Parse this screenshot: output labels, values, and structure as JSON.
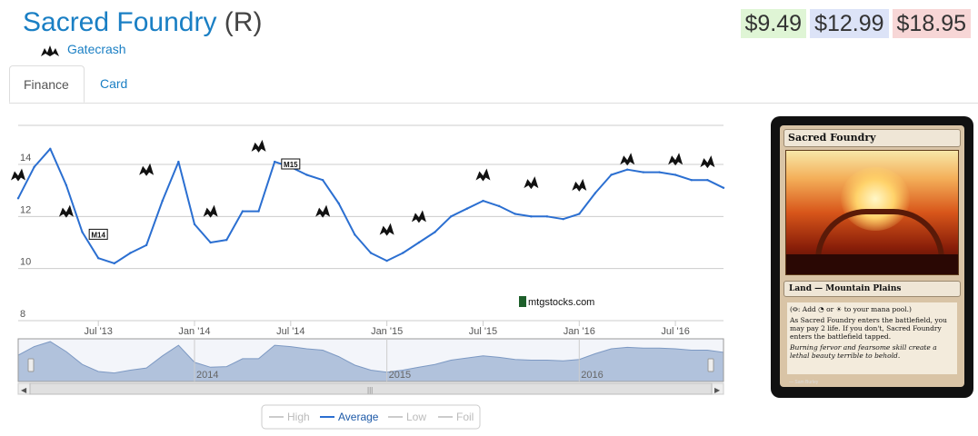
{
  "header": {
    "card_name": "Sacred Foundry",
    "rarity": "(R)",
    "set_name": "Gatecrash",
    "set_icon": "gatecrash-set-icon"
  },
  "prices": [
    {
      "value": "$9.49",
      "bg": "#dff5d5"
    },
    {
      "value": "$12.99",
      "bg": "#dce3f7"
    },
    {
      "value": "$18.95",
      "bg": "#f7d6d6"
    }
  ],
  "tabs": [
    {
      "label": "Finance",
      "active": true
    },
    {
      "label": "Card",
      "active": false
    }
  ],
  "chart_data": {
    "type": "line",
    "series": [
      {
        "name": "Average",
        "color": "#2b6fd1",
        "x": [
          "2013-02",
          "2013-03",
          "2013-04",
          "2013-05",
          "2013-06",
          "2013-07",
          "2013-08",
          "2013-09",
          "2013-10",
          "2013-11",
          "2013-12",
          "2014-01",
          "2014-02",
          "2014-03",
          "2014-04",
          "2014-05",
          "2014-06",
          "2014-07",
          "2014-08",
          "2014-09",
          "2014-10",
          "2014-11",
          "2014-12",
          "2015-01",
          "2015-02",
          "2015-03",
          "2015-04",
          "2015-05",
          "2015-06",
          "2015-07",
          "2015-08",
          "2015-09",
          "2015-10",
          "2015-11",
          "2015-12",
          "2016-01",
          "2016-02",
          "2016-03",
          "2016-04",
          "2016-05",
          "2016-06",
          "2016-07",
          "2016-08",
          "2016-09",
          "2016-10"
        ],
        "y": [
          12.7,
          13.9,
          14.6,
          13.2,
          11.4,
          10.4,
          10.2,
          10.6,
          10.9,
          12.6,
          14.1,
          11.7,
          11.0,
          11.1,
          12.2,
          12.2,
          14.1,
          13.9,
          13.6,
          13.4,
          12.5,
          11.3,
          10.6,
          10.3,
          10.6,
          11.0,
          11.4,
          12.0,
          12.3,
          12.6,
          12.4,
          12.1,
          12.0,
          12.0,
          11.9,
          12.1,
          12.9,
          13.6,
          13.8,
          13.7,
          13.7,
          13.6,
          13.4,
          13.4,
          13.1
        ]
      }
    ],
    "ylim": [
      8,
      15.5
    ],
    "yticks": [
      "8",
      "10",
      "12",
      "14"
    ],
    "xticks": [
      "Jul '13",
      "Jan '14",
      "Jul '14",
      "Jan '15",
      "Jul '15",
      "Jan '16",
      "Jul '16"
    ],
    "navigator_labels": [
      "2014",
      "2015",
      "2016"
    ],
    "watermark": "mtgstocks.com",
    "legend": [
      "High",
      "Average",
      "Low",
      "Foil"
    ],
    "legend_active": "Average",
    "set_markers": [
      {
        "icon": "gatecrash-set-icon",
        "x": "2013-02",
        "y": 13.6
      },
      {
        "icon": "dragons-maze-set-icon",
        "x": "2013-05",
        "y": 12.2
      },
      {
        "icon": "m14-set-icon",
        "x": "2013-07",
        "y": 11.3,
        "text": "M14"
      },
      {
        "icon": "theros-set-icon",
        "x": "2013-10",
        "y": 13.8
      },
      {
        "icon": "born-of-the-gods-set-icon",
        "x": "2014-02",
        "y": 12.2
      },
      {
        "icon": "journey-into-nyx-set-icon",
        "x": "2014-05",
        "y": 14.7
      },
      {
        "icon": "m15-set-icon",
        "x": "2014-07",
        "y": 14.0,
        "text": "M15"
      },
      {
        "icon": "khans-of-tarkir-set-icon",
        "x": "2014-09",
        "y": 12.2
      },
      {
        "icon": "fate-reforged-set-icon",
        "x": "2015-01",
        "y": 11.5
      },
      {
        "icon": "dragons-of-tarkir-set-icon",
        "x": "2015-03",
        "y": 12.0
      },
      {
        "icon": "magic-origins-set-icon",
        "x": "2015-07",
        "y": 13.6
      },
      {
        "icon": "battle-for-zendikar-set-icon",
        "x": "2015-10",
        "y": 13.3
      },
      {
        "icon": "oath-of-the-gatewatch-set-icon",
        "x": "2016-01",
        "y": 13.2
      },
      {
        "icon": "shadows-over-innistrad-set-icon",
        "x": "2016-04",
        "y": 14.2
      },
      {
        "icon": "eldritch-moon-set-icon",
        "x": "2016-07",
        "y": 14.2
      },
      {
        "icon": "kaladesh-set-icon",
        "x": "2016-09",
        "y": 14.1
      }
    ],
    "grid": true
  },
  "card_image": {
    "name": "Sacred Foundry",
    "type_line": "Land — Mountain Plains",
    "rules_1": "(⭖: Add ◔ or ☀ to your mana pool.)",
    "rules_2": "As Sacred Foundry enters the battlefield, you may pay 2 life. If you don't, Sacred Foundry enters the battlefield tapped.",
    "flavor": "Burning fervor and fearsome skill create a lethal beauty terrible to behold.",
    "artist": "— Sam Burley"
  }
}
